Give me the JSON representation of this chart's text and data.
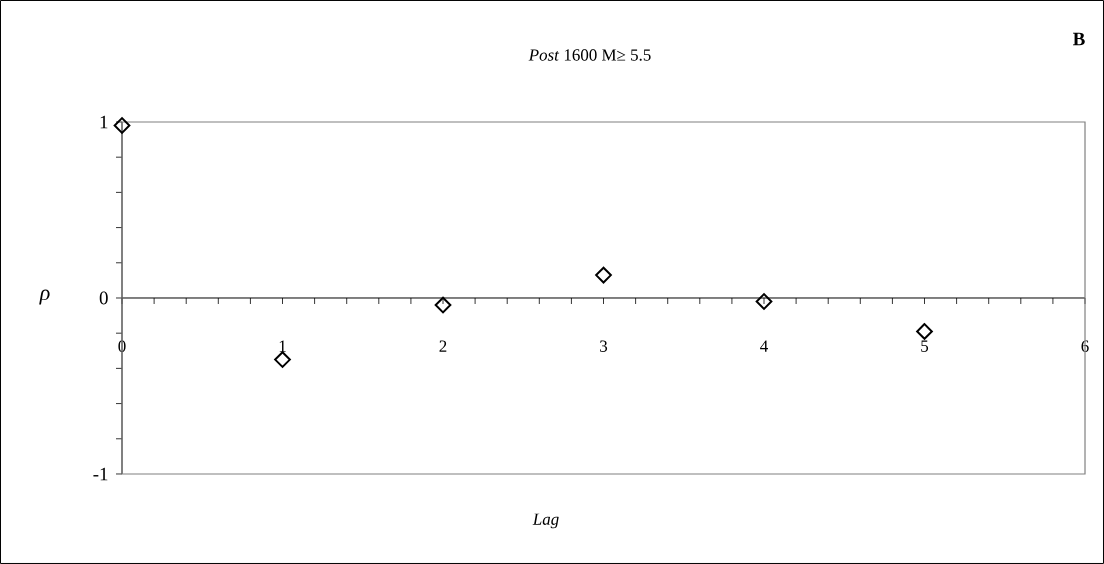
{
  "chart_data": {
    "type": "scatter",
    "title": "*Post* 1600 M≥ 5.5",
    "xlabel": "Lag",
    "ylabel": "ρ",
    "annotations": [
      "B"
    ],
    "x": [
      0,
      1,
      2,
      3,
      4,
      5
    ],
    "series": [
      {
        "color": "#000000",
        "values": [
          0.98,
          -0.35,
          -0.04,
          0.13,
          -0.02,
          -0.19
        ]
      }
    ],
    "marker": "diamond",
    "xlim": [
      0,
      6
    ],
    "ylim": [
      -1,
      1
    ],
    "xticks": [
      0,
      {
        "value": 0.2,
        "label": null
      },
      {
        "value": 0.4,
        "label": null
      },
      {
        "value": 0.6,
        "label": null
      },
      {
        "value": 0.8,
        "label": null
      },
      1,
      {
        "value": 1.2,
        "label": null
      },
      {
        "value": 1.4,
        "label": null
      },
      {
        "value": 1.6,
        "label": null
      },
      {
        "value": 1.8,
        "label": null
      },
      2,
      {
        "value": 2.2,
        "label": null
      },
      {
        "value": 2.4,
        "label": null
      },
      {
        "value": 2.6,
        "label": null
      },
      {
        "value": 2.8,
        "label": null
      },
      3,
      {
        "value": 3.2,
        "label": null
      },
      {
        "value": 3.4,
        "label": null
      },
      {
        "value": 3.6,
        "label": null
      },
      {
        "value": 3.8,
        "label": null
      },
      4,
      {
        "value": 4.2,
        "label": null
      },
      {
        "value": 4.4,
        "label": null
      },
      {
        "value": 4.6,
        "label": null
      },
      {
        "value": 4.8,
        "label": null
      },
      5,
      {
        "value": 5.2,
        "label": null
      },
      {
        "value": 5.4,
        "label": null
      },
      {
        "value": 5.6,
        "label": null
      },
      {
        "value": 5.8,
        "label": null
      },
      6
    ],
    "yticks": [
      -1,
      {
        "value": -0.8,
        "label": null
      },
      {
        "value": -0.6,
        "label": null
      },
      {
        "value": -0.4,
        "label": null
      },
      {
        "value": -0.2,
        "label": null
      },
      0,
      {
        "value": 0.2,
        "label": null
      },
      {
        "value": 0.4,
        "label": null
      },
      {
        "value": 0.6,
        "label": null
      },
      {
        "value": 0.8,
        "label": null
      },
      1
    ]
  }
}
